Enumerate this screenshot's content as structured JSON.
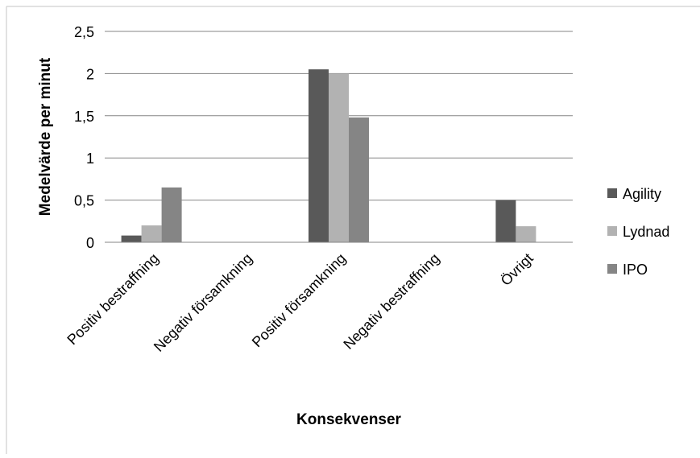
{
  "chart_data": {
    "type": "bar",
    "title": "",
    "xlabel": "Konsekvenser",
    "ylabel": "Medelvärde per minut",
    "categories": [
      "Positiv bestraffning",
      "Negativ församkning",
      "Positiv församkning",
      "Negativ bestraffning",
      "Övrigt"
    ],
    "series": [
      {
        "name": "Agility",
        "values": [
          0.08,
          0,
          2.05,
          0,
          0.5
        ],
        "color": "#595959"
      },
      {
        "name": "Lydnad",
        "values": [
          0.2,
          0,
          2.0,
          0,
          0.19
        ],
        "color": "#b2b2b2"
      },
      {
        "name": "IPO",
        "values": [
          0.65,
          0,
          1.48,
          0,
          0
        ],
        "color": "#858585"
      }
    ],
    "yticks": [
      "0",
      "0,5",
      "1",
      "1,5",
      "2",
      "2,5"
    ],
    "ylim": [
      0,
      2.5
    ],
    "grid": true,
    "legend_position": "right"
  }
}
